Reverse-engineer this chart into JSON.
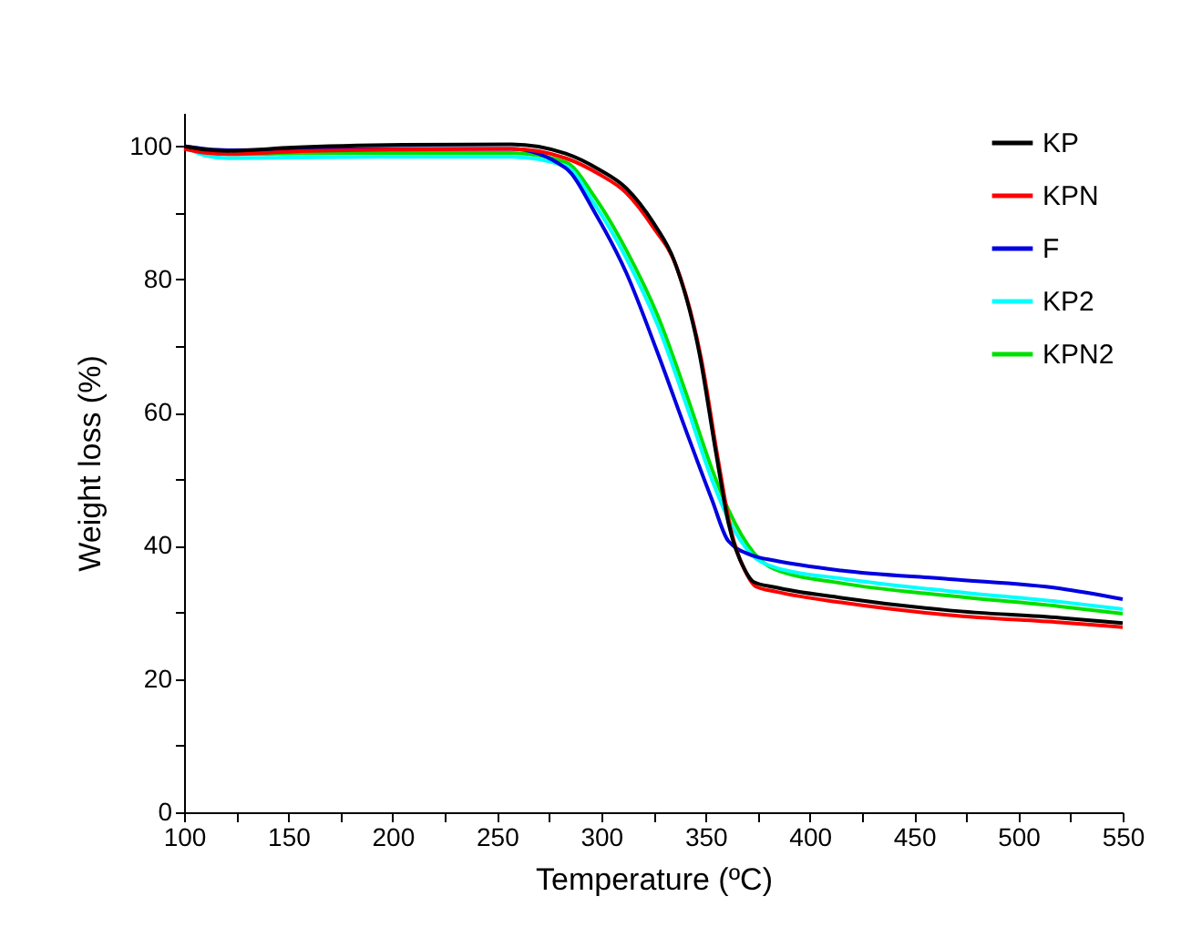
{
  "chart_data": {
    "type": "line",
    "xlabel": "Temperature (ºC)",
    "ylabel": "Weight loss (%)",
    "xlim": [
      100,
      550
    ],
    "ylim": [
      0,
      105
    ],
    "xticks": [
      100,
      {
        "value": 125,
        "label": null
      },
      150,
      {
        "value": 175,
        "label": null
      },
      200,
      {
        "value": 225,
        "label": null
      },
      250,
      {
        "value": 275,
        "label": null
      },
      300,
      {
        "value": 325,
        "label": null
      },
      350,
      {
        "value": 375,
        "label": null
      },
      400,
      {
        "value": 425,
        "label": null
      },
      450,
      {
        "value": 475,
        "label": null
      },
      500,
      {
        "value": 525,
        "label": null
      },
      550
    ],
    "yticks": [
      0,
      {
        "value": 10,
        "label": null
      },
      20,
      {
        "value": 30,
        "label": null
      },
      40,
      {
        "value": 50,
        "label": null
      },
      60,
      {
        "value": 70,
        "label": null
      },
      80,
      {
        "value": 90,
        "label": null
      },
      100
    ],
    "grid": false,
    "legend": "top right",
    "marker": "none",
    "line_style": "solid",
    "series": [
      {
        "name": "KP",
        "color": "#000000",
        "x": [
          100,
          110,
          121,
          152,
          205,
          257,
          283,
          299,
          312,
          325,
          335,
          347,
          355,
          361,
          369,
          373,
          383,
          415,
          467,
          520,
          550
        ],
        "values": [
          100,
          99.5,
          99.3,
          99.8,
          100.2,
          100.3,
          98.9,
          96.5,
          93.7,
          88.5,
          82.8,
          69,
          54,
          43.4,
          36.3,
          34.6,
          33.8,
          32.2,
          30.3,
          29.2,
          28.4
        ]
      },
      {
        "name": "KPN",
        "color": "#ff0000",
        "x": [
          100,
          110,
          121,
          152,
          205,
          257,
          283,
          299,
          312,
          325,
          336,
          348,
          356,
          362,
          370,
          374,
          384,
          415,
          467,
          520,
          550
        ],
        "values": [
          99.6,
          99,
          98.8,
          99.2,
          99.5,
          99.6,
          98.2,
          95.8,
          93,
          87.8,
          82,
          68,
          53,
          42.6,
          35.6,
          33.9,
          33.1,
          31.5,
          29.6,
          28.5,
          27.8
        ]
      },
      {
        "name": "F",
        "color": "#0000e0",
        "x": [
          100,
          110,
          121,
          152,
          205,
          257,
          283,
          297,
          312,
          327,
          341,
          353,
          361,
          373,
          383,
          415,
          467,
          520,
          550
        ],
        "values": [
          100,
          99.6,
          99.4,
          99.5,
          99.6,
          99.6,
          96.7,
          90,
          81,
          69,
          57,
          47,
          40.7,
          38.5,
          37.8,
          36.3,
          35,
          33.6,
          32
        ]
      },
      {
        "name": "KP2",
        "color": "#00ffff",
        "x": [
          100,
          110,
          121,
          152,
          205,
          257,
          283,
          297,
          312,
          327,
          341,
          353,
          361,
          373,
          383,
          415,
          467,
          520,
          550
        ],
        "values": [
          100,
          98.6,
          98.2,
          98.3,
          98.4,
          98.4,
          97,
          91.2,
          83.2,
          73.2,
          61,
          50,
          44,
          38.4,
          36.8,
          35.1,
          33.2,
          31.6,
          30.5
        ]
      },
      {
        "name": "KPN2",
        "color": "#00e000",
        "x": [
          100,
          110,
          121,
          152,
          205,
          257,
          283,
          297,
          312,
          327,
          341,
          353,
          361,
          373,
          383,
          415,
          467,
          520,
          550
        ],
        "values": [
          100,
          99.1,
          98.8,
          98.9,
          99,
          99,
          97.6,
          92.3,
          84.4,
          74.6,
          62.6,
          51.6,
          45.4,
          39,
          36.5,
          34.4,
          32.5,
          30.9,
          29.8
        ]
      }
    ]
  }
}
